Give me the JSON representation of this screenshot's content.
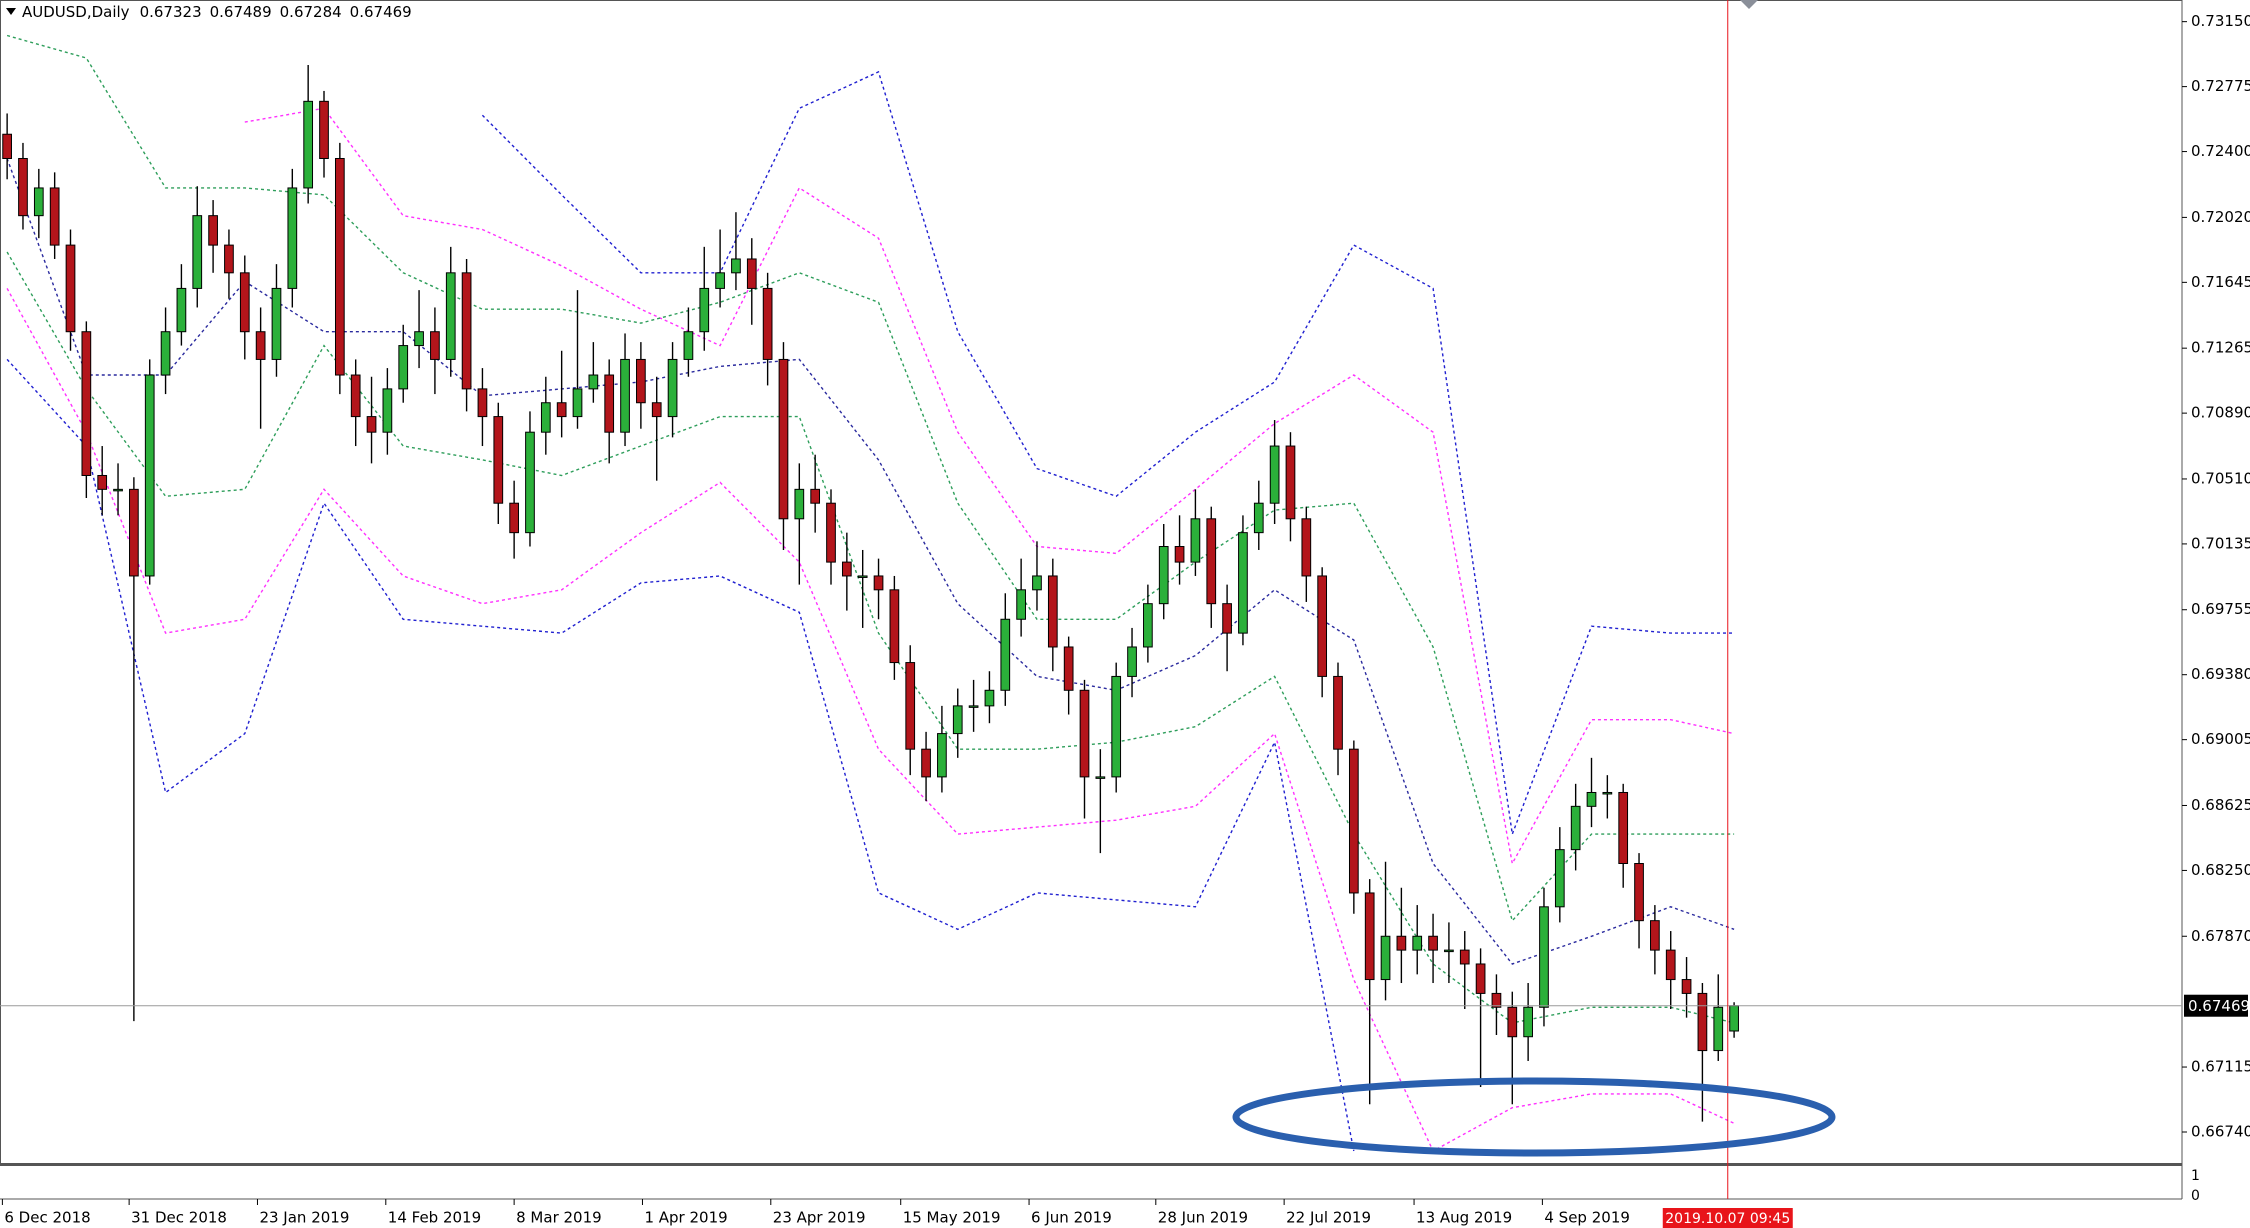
{
  "chart_data": {
    "type": "candlestick",
    "title": "AUDUSD,Daily",
    "up_color": "#2bb03a",
    "down_color": "#b3151b",
    "xlim": [
      -0.45,
      137.27
    ],
    "ylim": [
      0.66561,
      0.73275
    ],
    "xticks": [
      {
        "value": -0.3,
        "label": "6 Dec 2018"
      },
      {
        "value": 7.7,
        "label": "31 Dec 2018"
      },
      {
        "value": 15.8,
        "label": "23 Jan 2019"
      },
      {
        "value": 23.9,
        "label": "14 Feb 2019"
      },
      {
        "value": 32,
        "label": "8 Mar 2019"
      },
      {
        "value": 40.1,
        "label": "1 Apr 2019"
      },
      {
        "value": 48.2,
        "label": "23 Apr 2019"
      },
      {
        "value": 56.4,
        "label": "15 May 2019"
      },
      {
        "value": 64.5,
        "label": "6 Jun 2019"
      },
      {
        "value": 72.5,
        "label": "28 Jun 2019"
      },
      {
        "value": 80.6,
        "label": "22 Jul 2019"
      },
      {
        "value": 88.8,
        "label": "13 Aug 2019"
      },
      {
        "value": 96.9,
        "label": "4 Sep 2019"
      }
    ],
    "yticks": [
      {
        "value": 0.7315,
        "label": "0.73150"
      },
      0.72775,
      {
        "value": 0.724,
        "label": "0.72400"
      },
      {
        "value": 0.7202,
        "label": "0.72020"
      },
      0.71645,
      0.71265,
      {
        "value": 0.7089,
        "label": "0.70890"
      },
      {
        "value": 0.7051,
        "label": "0.70510"
      },
      0.70135,
      0.69755,
      {
        "value": 0.6938,
        "label": "0.69380"
      },
      0.69005,
      0.68625,
      {
        "value": 0.6825,
        "label": "0.68250"
      },
      {
        "value": 0.6787,
        "label": "0.67870"
      },
      0.67115,
      {
        "value": 0.6674,
        "label": "0.66740"
      }
    ],
    "cursor": {
      "x": 108.6,
      "label": "2019.10.07 09:45",
      "color": "#e8141a"
    },
    "indicator": {
      "ylim": [
        0,
        1
      ],
      "yticks": [
        1,
        0
      ]
    },
    "open": [
      0.725,
      0.7236,
      0.7203,
      0.7219,
      0.7186,
      0.7136,
      0.7053,
      0.7045,
      0.7045,
      0.6995,
      0.7111,
      0.7136,
      0.7161,
      0.7203,
      0.7186,
      0.717,
      0.7136,
      0.712,
      0.7161,
      0.7219,
      0.7269,
      0.7236,
      0.7111,
      0.7087,
      0.7078,
      0.7103,
      0.7128,
      0.7136,
      0.712,
      0.717,
      0.7103,
      0.7087,
      0.7037,
      0.702,
      0.7078,
      0.7095,
      0.7087,
      0.7103,
      0.7111,
      0.7078,
      0.712,
      0.7095,
      0.7087,
      0.712,
      0.7136,
      0.7161,
      0.717,
      0.7178,
      0.7161,
      0.712,
      0.7028,
      0.7045,
      0.7037,
      0.7003,
      0.6995,
      0.6995,
      0.6987,
      0.6945,
      0.6895,
      0.6879,
      0.6904,
      0.692,
      0.692,
      0.6929,
      0.697,
      0.6987,
      0.6995,
      0.6954,
      0.6929,
      0.6879,
      0.6879,
      0.6937,
      0.6954,
      0.6979,
      0.7012,
      0.7003,
      0.7028,
      0.6979,
      0.6962,
      0.702,
      0.7037,
      0.707,
      0.7028,
      0.6995,
      0.6937,
      0.6895,
      0.6812,
      0.6762,
      0.6787,
      0.6779,
      0.6787,
      0.6779,
      0.6779,
      0.6771,
      0.6754,
      0.6746,
      0.6729,
      0.6746,
      0.6804,
      0.6837,
      0.6862,
      0.687,
      0.687,
      0.6829,
      0.6796,
      0.6779,
      0.6762,
      0.6754,
      0.6721,
      0.67323
    ],
    "high": [
      0.7262,
      0.7245,
      0.723,
      0.7228,
      0.7195,
      0.7142,
      0.707,
      0.706,
      0.7052,
      0.712,
      0.715,
      0.7175,
      0.722,
      0.7212,
      0.7195,
      0.718,
      0.715,
      0.7175,
      0.723,
      0.729,
      0.7275,
      0.7245,
      0.712,
      0.711,
      0.7115,
      0.714,
      0.716,
      0.715,
      0.7185,
      0.7178,
      0.7115,
      0.7095,
      0.705,
      0.709,
      0.711,
      0.7125,
      0.716,
      0.713,
      0.712,
      0.7135,
      0.713,
      0.711,
      0.713,
      0.715,
      0.7185,
      0.7195,
      0.7205,
      0.719,
      0.717,
      0.713,
      0.706,
      0.7065,
      0.7045,
      0.702,
      0.701,
      0.7005,
      0.6995,
      0.6955,
      0.6905,
      0.692,
      0.693,
      0.6935,
      0.694,
      0.6985,
      0.7005,
      0.7015,
      0.7005,
      0.696,
      0.6935,
      0.6895,
      0.6945,
      0.6965,
      0.699,
      0.7025,
      0.703,
      0.7045,
      0.7035,
      0.699,
      0.703,
      0.705,
      0.7085,
      0.7078,
      0.7035,
      0.7,
      0.6945,
      0.69,
      0.682,
      0.683,
      0.6815,
      0.6805,
      0.68,
      0.6795,
      0.679,
      0.678,
      0.6765,
      0.6755,
      0.676,
      0.6815,
      0.685,
      0.6875,
      0.689,
      0.688,
      0.6875,
      0.6835,
      0.6805,
      0.679,
      0.6775,
      0.676,
      0.6765,
      0.67489
    ],
    "low": [
      0.7224,
      0.7195,
      0.719,
      0.7178,
      0.7125,
      0.704,
      0.703,
      0.703,
      0.6738,
      0.699,
      0.71,
      0.7128,
      0.715,
      0.717,
      0.7155,
      0.712,
      0.708,
      0.711,
      0.715,
      0.721,
      0.7225,
      0.71,
      0.707,
      0.706,
      0.7065,
      0.7095,
      0.7115,
      0.71,
      0.711,
      0.709,
      0.707,
      0.7025,
      0.7005,
      0.7012,
      0.7065,
      0.7075,
      0.708,
      0.7095,
      0.706,
      0.707,
      0.708,
      0.705,
      0.7075,
      0.711,
      0.7125,
      0.715,
      0.716,
      0.714,
      0.7105,
      0.701,
      0.699,
      0.702,
      0.699,
      0.6975,
      0.6965,
      0.697,
      0.6935,
      0.688,
      0.6865,
      0.687,
      0.689,
      0.6905,
      0.691,
      0.692,
      0.696,
      0.6975,
      0.694,
      0.6915,
      0.6855,
      0.6835,
      0.687,
      0.6925,
      0.6945,
      0.697,
      0.699,
      0.6995,
      0.6965,
      0.694,
      0.6955,
      0.701,
      0.7025,
      0.7015,
      0.698,
      0.6925,
      0.688,
      0.68,
      0.669,
      0.675,
      0.676,
      0.6765,
      0.676,
      0.676,
      0.6745,
      0.67,
      0.673,
      0.669,
      0.6715,
      0.6735,
      0.6795,
      0.6825,
      0.685,
      0.6855,
      0.6815,
      0.678,
      0.6765,
      0.6745,
      0.674,
      0.668,
      0.6715,
      0.67284
    ],
    "close": [
      0.7236,
      0.7203,
      0.7219,
      0.7186,
      0.7136,
      0.7053,
      0.7045,
      0.7045,
      0.6995,
      0.7111,
      0.7136,
      0.7161,
      0.7203,
      0.7186,
      0.717,
      0.7136,
      0.712,
      0.7161,
      0.7219,
      0.7269,
      0.7236,
      0.7111,
      0.7087,
      0.7078,
      0.7103,
      0.7128,
      0.7136,
      0.712,
      0.717,
      0.7103,
      0.7087,
      0.7037,
      0.702,
      0.7078,
      0.7095,
      0.7087,
      0.7103,
      0.7111,
      0.7078,
      0.712,
      0.7095,
      0.7087,
      0.712,
      0.7136,
      0.7161,
      0.717,
      0.7178,
      0.7161,
      0.712,
      0.7028,
      0.7045,
      0.7037,
      0.7003,
      0.6995,
      0.6995,
      0.6987,
      0.6945,
      0.6895,
      0.6879,
      0.6904,
      0.692,
      0.692,
      0.6929,
      0.697,
      0.6987,
      0.6995,
      0.6954,
      0.6929,
      0.6879,
      0.6879,
      0.6937,
      0.6954,
      0.6979,
      0.7012,
      0.7003,
      0.7028,
      0.6979,
      0.6962,
      0.702,
      0.7037,
      0.707,
      0.7028,
      0.6995,
      0.6937,
      0.6895,
      0.6812,
      0.6762,
      0.6787,
      0.6779,
      0.6787,
      0.6779,
      0.6779,
      0.6771,
      0.6754,
      0.6746,
      0.6729,
      0.6746,
      0.6804,
      0.6837,
      0.6862,
      0.687,
      0.687,
      0.6829,
      0.6796,
      0.6779,
      0.6762,
      0.6754,
      0.6721,
      0.6746,
      0.67469
    ],
    "bands": {
      "x": [
        0,
        5,
        10,
        15,
        20,
        25,
        30,
        35,
        40,
        45,
        50,
        55,
        60,
        65,
        70,
        75,
        80,
        85,
        90,
        95,
        100,
        105,
        109
      ],
      "lines": [
        {
          "color": "#2020d0",
          "values": [
            null,
            null,
            null,
            null,
            null,
            null,
            0.7261,
            0.7215,
            0.717,
            0.717,
            0.7265,
            0.7286,
            0.7136,
            0.7057,
            0.7041,
            0.7078,
            0.7107,
            0.7186,
            0.7161,
            0.6846,
            0.6966,
            0.6962,
            0.6962
          ]
        },
        {
          "color": "#ff30ff",
          "values": [
            null,
            null,
            null,
            0.7257,
            0.7265,
            0.7203,
            0.7195,
            0.7174,
            0.7149,
            0.7128,
            0.7219,
            0.719,
            0.7078,
            0.7012,
            0.7008,
            0.7045,
            0.7083,
            0.7111,
            0.7078,
            0.6829,
            0.6912,
            0.6912,
            0.6904
          ]
        },
        {
          "color": "#2e9e5b",
          "values": [
            0.7307,
            0.7294,
            0.7219,
            0.7219,
            0.7215,
            0.717,
            0.7149,
            0.7149,
            0.7141,
            0.7153,
            0.717,
            0.7153,
            0.7037,
            0.697,
            0.697,
            0.7003,
            0.7033,
            0.7037,
            0.6954,
            0.6796,
            0.6846,
            0.6846,
            0.6846
          ]
        },
        {
          "color": "#2a2a9e",
          "values": [
            0.7236,
            0.7111,
            0.7111,
            0.7165,
            0.7136,
            0.7136,
            0.7099,
            0.7103,
            0.7107,
            0.7116,
            0.712,
            0.7062,
            0.6979,
            0.6937,
            0.6929,
            0.6949,
            0.6987,
            0.6958,
            0.6829,
            0.6771,
            0.6787,
            0.6804,
            0.6791
          ]
        },
        {
          "color": "#2e9e5b",
          "values": [
            0.7182,
            0.7103,
            0.7041,
            0.7045,
            0.7128,
            0.707,
            0.7062,
            0.7053,
            0.707,
            0.7087,
            0.7087,
            0.6962,
            0.6895,
            0.6895,
            0.6899,
            0.6908,
            0.6937,
            0.6846,
            0.6771,
            0.6737,
            0.6746,
            0.6746,
            0.6737
          ]
        },
        {
          "color": "#ff30ff",
          "values": [
            0.7161,
            0.7078,
            0.6962,
            0.697,
            0.7045,
            0.6995,
            0.6979,
            0.6987,
            0.702,
            0.7049,
            0.7003,
            0.6895,
            0.6846,
            0.685,
            0.6854,
            0.6862,
            0.6904,
            0.6762,
            0.6663,
            0.6688,
            0.6696,
            0.6696,
            0.6679
          ]
        },
        {
          "color": "#2020d0",
          "values": [
            0.712,
            0.707,
            0.687,
            0.6904,
            0.7037,
            0.697,
            0.6966,
            0.6962,
            0.6991,
            0.6995,
            0.6974,
            0.6812,
            0.6791,
            0.6812,
            0.6808,
            0.6804,
            0.6899,
            0.6663,
            null,
            0.6663,
            null,
            null,
            null
          ]
        }
      ]
    }
  }
}
